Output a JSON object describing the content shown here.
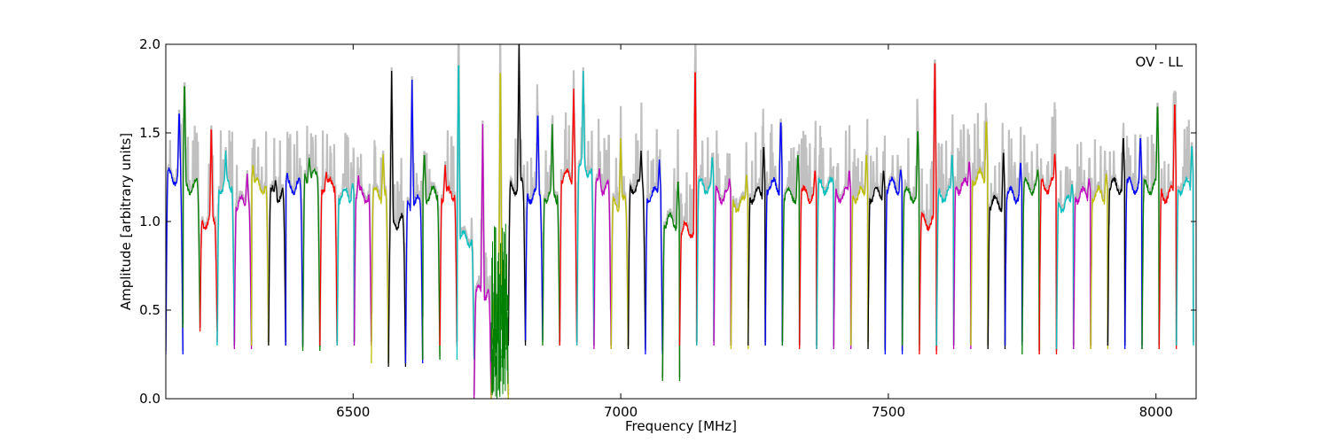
{
  "chart_data": {
    "type": "line",
    "title": "",
    "xlabel": "Frequency [MHz]",
    "ylabel": "Amplitude [arbitrary units]",
    "xlim": [
      6150,
      8075
    ],
    "ylim": [
      0.0,
      2.0
    ],
    "xticks": [
      6500,
      7000,
      7500,
      8000
    ],
    "xtick_labels": [
      "6500",
      "7000",
      "7500",
      "8000"
    ],
    "yticks": [
      0.0,
      0.5,
      1.0,
      1.5,
      2.0
    ],
    "ytick_labels": [
      "0.0",
      "0.5",
      "1.0",
      "1.5",
      "2.0"
    ],
    "grid": false,
    "legend": "none",
    "annotation": "OV - LL",
    "background_series_color": "#c0c0c0",
    "palette": [
      "#0000ff",
      "#008000",
      "#ff0000",
      "#00bfbf",
      "#bf00bf",
      "#bfbf00",
      "#000000"
    ],
    "spw_width_mhz": 32,
    "spw_start_mhz": [
      6150,
      6182,
      6214,
      6246,
      6278,
      6310,
      6342,
      6374,
      6406,
      6438,
      6470,
      6502,
      6534,
      6566,
      6598,
      6630,
      6662,
      6694,
      6726,
      6758,
      6790,
      6822,
      6854,
      6886,
      6918,
      6950,
      6982,
      7014,
      7046,
      7078,
      7110,
      7142,
      7174,
      7206,
      7238,
      7270,
      7302,
      7334,
      7366,
      7398,
      7430,
      7462,
      7494,
      7526,
      7558,
      7590,
      7622,
      7654,
      7686,
      7718,
      7750,
      7782,
      7814,
      7846,
      7878,
      7910,
      7942,
      7974,
      8006,
      8038
    ],
    "spw_plateau": [
      1.25,
      1.2,
      1.0,
      1.2,
      1.1,
      1.2,
      1.15,
      1.2,
      1.25,
      1.2,
      1.15,
      1.15,
      1.15,
      1.0,
      1.1,
      1.15,
      1.15,
      0.9,
      0.6,
      0.5,
      1.2,
      1.15,
      1.15,
      1.25,
      1.3,
      1.2,
      1.1,
      1.2,
      1.15,
      1.0,
      0.95,
      1.2,
      1.15,
      1.1,
      1.15,
      1.2,
      1.15,
      1.15,
      1.2,
      1.15,
      1.15,
      1.15,
      1.2,
      1.15,
      1.0,
      1.15,
      1.2,
      1.25,
      1.1,
      1.15,
      1.2,
      1.2,
      1.1,
      1.15,
      1.15,
      1.2,
      1.2,
      1.2,
      1.15,
      1.2
    ],
    "spw_peak": [
      1.65,
      1.83,
      1.58,
      1.4,
      1.27,
      1.33,
      1.24,
      1.28,
      1.36,
      1.28,
      1.22,
      1.26,
      1.38,
      1.85,
      1.8,
      1.4,
      1.32,
      2.0,
      1.55,
      2.0,
      2.0,
      1.65,
      1.55,
      1.75,
      1.85,
      1.3,
      1.47,
      1.4,
      1.35,
      1.25,
      1.95,
      1.38,
      1.25,
      1.28,
      1.45,
      1.6,
      1.4,
      1.3,
      1.25,
      1.3,
      1.4,
      1.3,
      1.3,
      1.55,
      2.0,
      1.4,
      1.35,
      1.6,
      1.42,
      1.35,
      1.3,
      1.4,
      1.22,
      1.25,
      1.28,
      1.5,
      1.5,
      1.7,
      1.72,
      1.45
    ],
    "spw_min": [
      0.25,
      0.4,
      0.38,
      0.3,
      0.28,
      0.3,
      0.3,
      0.3,
      0.27,
      0.3,
      0.3,
      0.3,
      0.2,
      0.18,
      0.2,
      0.22,
      0.3,
      0.22,
      0.0,
      0.0,
      0.3,
      0.33,
      0.3,
      0.3,
      0.3,
      0.28,
      0.28,
      0.28,
      0.25,
      0.1,
      0.3,
      0.3,
      0.3,
      0.28,
      0.3,
      0.3,
      0.3,
      0.28,
      0.28,
      0.28,
      0.3,
      0.28,
      0.25,
      0.3,
      0.25,
      0.3,
      0.28,
      0.3,
      0.28,
      0.3,
      0.25,
      0.25,
      0.28,
      0.28,
      0.28,
      0.3,
      0.28,
      0.28,
      0.28,
      0.3
    ],
    "spw_peak_mhz": [
      6175,
      6185,
      6235,
      6262,
      6302,
      6310,
      6355,
      6375,
      6418,
      6450,
      6500,
      6510,
      6556,
      6572,
      6610,
      6625,
      6672,
      6697,
      6742,
      6775,
      6810,
      6845,
      6872,
      6912,
      6930,
      6960,
      7000,
      7038,
      7072,
      7110,
      7140,
      7182,
      7222,
      7250,
      7290,
      7315,
      7364,
      7408,
      7442,
      7470,
      7505,
      7535,
      7562,
      7574,
      7628,
      7660,
      7700,
      7745,
      7780,
      7808,
      7830,
      7850,
      7912,
      7945,
      7955,
      7985,
      8028,
      8045,
      8048,
      8070
    ]
  }
}
